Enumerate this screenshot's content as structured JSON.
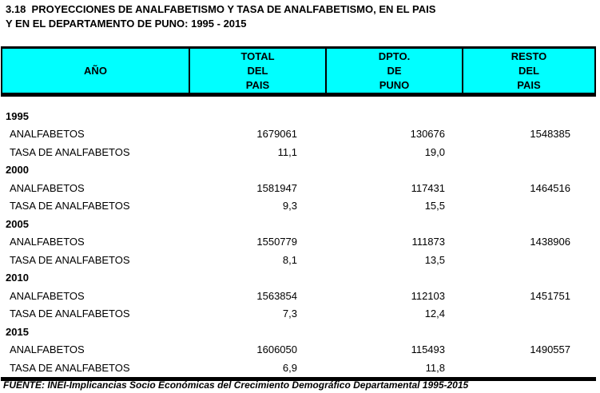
{
  "title": {
    "line1": "3.18  PROYECCIONES DE ANALFABETISMO Y TASA DE ANALFABETISMO, EN EL PAIS",
    "line2": "Y EN EL DEPARTAMENTO DE PUNO: 1995 - 2015"
  },
  "colors": {
    "header_bg": "#00FFFF",
    "text": "#000000"
  },
  "table": {
    "header": {
      "ano": "AÑO",
      "total": [
        "TOTAL",
        "DEL",
        "PAIS"
      ],
      "puno": [
        "DPTO.",
        "DE",
        "PUNO"
      ],
      "resto": [
        "RESTO",
        "DEL",
        "PAIS"
      ]
    },
    "groups": [
      {
        "year": "1995",
        "analfabetos": {
          "label": "ANALFABETOS",
          "total": "1679061",
          "puno": "130676",
          "resto": "1548385"
        },
        "tasa": {
          "label": "TASA DE ANALFABETOS",
          "total": "11,1",
          "puno": "19,0",
          "resto": ""
        }
      },
      {
        "year": "2000",
        "analfabetos": {
          "label": "ANALFABETOS",
          "total": "1581947",
          "puno": "117431",
          "resto": "1464516"
        },
        "tasa": {
          "label": "TASA DE ANALFABETOS",
          "total": "9,3",
          "puno": "15,5",
          "resto": ""
        }
      },
      {
        "year": "2005",
        "analfabetos": {
          "label": "ANALFABETOS",
          "total": "1550779",
          "puno": "111873",
          "resto": "1438906"
        },
        "tasa": {
          "label": "TASA DE ANALFABETOS",
          "total": "8,1",
          "puno": "13,5",
          "resto": ""
        }
      },
      {
        "year": "2010",
        "analfabetos": {
          "label": "ANALFABETOS",
          "total": "1563854",
          "puno": "112103",
          "resto": "1451751"
        },
        "tasa": {
          "label": "TASA DE ANALFABETOS",
          "total": "7,3",
          "puno": "12,4",
          "resto": ""
        }
      },
      {
        "year": "2015",
        "analfabetos": {
          "label": "ANALFABETOS",
          "total": "1606050",
          "puno": "115493",
          "resto": "1490557"
        },
        "tasa": {
          "label": "TASA DE ANALFABETOS",
          "total": "6,9",
          "puno": "11,8",
          "resto": ""
        }
      }
    ]
  },
  "footer": "FUENTE: INEI-Implicancias Socio Económicas del Crecimiento Demográfico Departamental 1995-2015"
}
